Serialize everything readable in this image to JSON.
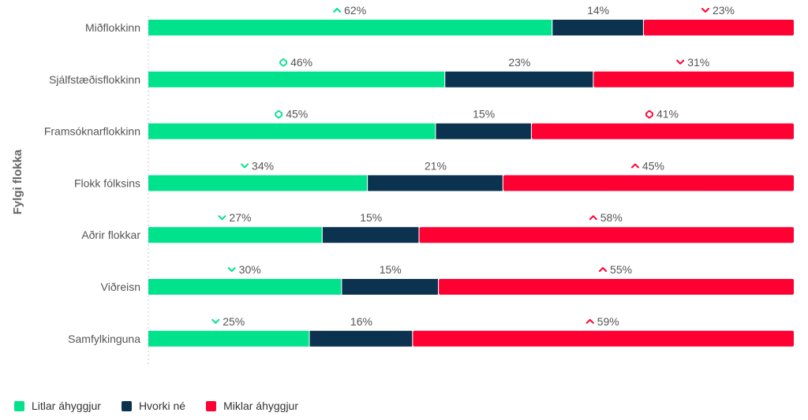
{
  "chart_data": {
    "type": "bar",
    "orientation": "horizontal",
    "stacked": true,
    "normalized_percent": true,
    "ylabel": "Fylgi flokka",
    "categories": [
      "Miðflokkinn",
      "Sjálfstæðisflokkinn",
      "Framsóknarflokkinn",
      "Flokk fólksins",
      "Aðrir flokkar",
      "Viðreisn",
      "Samfylkinguna"
    ],
    "series": [
      {
        "name": "Litlar áhyggjur",
        "color": "#00e38c",
        "values": [
          62,
          46,
          45,
          34,
          27,
          30,
          25
        ],
        "labels": [
          "62%",
          "46%",
          "45%",
          "34%",
          "27%",
          "30%",
          "25%"
        ],
        "markers": [
          "up",
          "diamond",
          "diamond",
          "down",
          "down",
          "down",
          "down"
        ]
      },
      {
        "name": "Hvorki né",
        "color": "#0b3350",
        "values": [
          14,
          23,
          15,
          21,
          15,
          15,
          16
        ],
        "labels": [
          "14%",
          "23%",
          "15%",
          "21%",
          "15%",
          "15%",
          "16%"
        ],
        "markers": [
          "none",
          "none",
          "none",
          "none",
          "none",
          "none",
          "none"
        ]
      },
      {
        "name": "Miklar áhyggjur",
        "color": "#ff0032",
        "values": [
          23,
          31,
          41,
          45,
          58,
          55,
          59
        ],
        "labels": [
          "23%",
          "31%",
          "41%",
          "45%",
          "58%",
          "55%",
          "59%"
        ],
        "markers": [
          "down",
          "down",
          "diamond",
          "up",
          "up",
          "up",
          "up"
        ]
      }
    ],
    "legend": "bottom-left",
    "grid": false
  }
}
